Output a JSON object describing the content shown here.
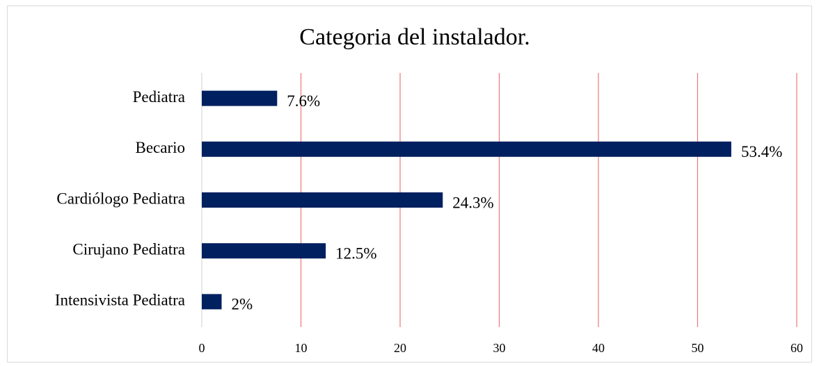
{
  "chart_data": {
    "type": "bar",
    "orientation": "horizontal",
    "title": "Categoria del instalador.",
    "categories": [
      "Pediatra",
      "Becario",
      "Cardiólogo Pediatra",
      "Cirujano Pediatra",
      "Intensivista Pediatra"
    ],
    "values": [
      7.6,
      53.4,
      24.3,
      12.5,
      2
    ],
    "value_labels": [
      "7.6%",
      "53.4%",
      "24.3%",
      "12.5%",
      "2%"
    ],
    "color": "#002060",
    "xlim": [
      0,
      60
    ],
    "xticks": [
      0,
      10,
      20,
      30,
      40,
      50,
      60
    ],
    "grid": true,
    "grid_color": "#ee7777"
  }
}
